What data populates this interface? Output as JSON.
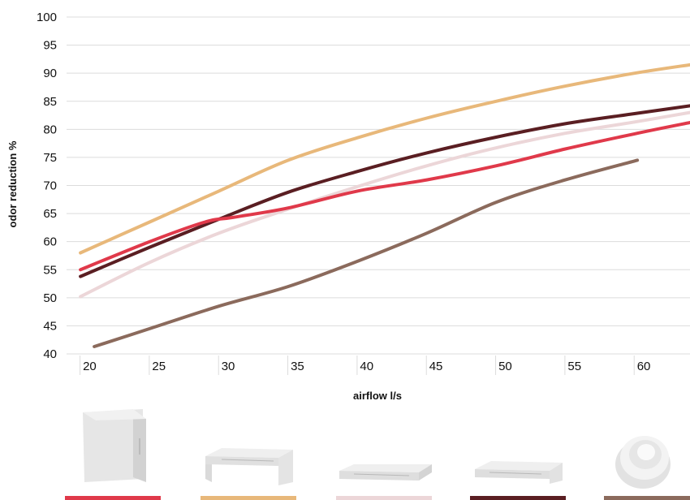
{
  "chart_data": {
    "type": "line",
    "xlabel": "airflow l/s",
    "ylabel": "odor reduction %",
    "xlim": [
      19,
      64
    ],
    "ylim": [
      40,
      100
    ],
    "x_ticks": [
      20,
      25,
      30,
      35,
      40,
      45,
      50,
      55,
      60
    ],
    "y_ticks": [
      40,
      45,
      50,
      55,
      60,
      65,
      70,
      75,
      80,
      85,
      90,
      95,
      100
    ],
    "grid": "horizontal",
    "series": [
      {
        "color": "#e8b87a",
        "points": [
          [
            20,
            58
          ],
          [
            25,
            63.5
          ],
          [
            30,
            69
          ],
          [
            35,
            74.5
          ],
          [
            40,
            78.5
          ],
          [
            45,
            82
          ],
          [
            50,
            85
          ],
          [
            55,
            87.7
          ],
          [
            60,
            90
          ],
          [
            64,
            91.5
          ]
        ]
      },
      {
        "color": "#5a1e22",
        "points": [
          [
            20,
            53.8
          ],
          [
            25,
            59
          ],
          [
            30,
            64
          ],
          [
            35,
            68.8
          ],
          [
            40,
            72.5
          ],
          [
            45,
            75.8
          ],
          [
            50,
            78.6
          ],
          [
            55,
            81
          ],
          [
            60,
            82.8
          ],
          [
            64,
            84.2
          ]
        ]
      },
      {
        "color": "#ecd6d8",
        "points": [
          [
            20,
            50.2
          ],
          [
            25,
            56.3
          ],
          [
            30,
            61.5
          ],
          [
            35,
            65.8
          ],
          [
            40,
            69.8
          ],
          [
            45,
            73.5
          ],
          [
            50,
            76.7
          ],
          [
            55,
            79.3
          ],
          [
            60,
            81.3
          ],
          [
            64,
            83
          ]
        ]
      },
      {
        "color": "#e0394a",
        "points": [
          [
            20,
            55
          ],
          [
            25,
            60
          ],
          [
            29,
            63.5
          ],
          [
            31,
            64.3
          ],
          [
            35,
            66
          ],
          [
            40,
            69
          ],
          [
            45,
            71
          ],
          [
            50,
            73.5
          ],
          [
            55,
            76.5
          ],
          [
            60,
            79.2
          ],
          [
            64,
            81.2
          ]
        ]
      },
      {
        "color": "#8b6a5c",
        "points": [
          [
            21,
            41.3
          ],
          [
            25,
            44.5
          ],
          [
            30,
            48.5
          ],
          [
            35,
            52
          ],
          [
            40,
            56.5
          ],
          [
            45,
            61.5
          ],
          [
            50,
            67
          ],
          [
            55,
            71
          ],
          [
            60.2,
            74.5
          ]
        ]
      }
    ]
  },
  "products": [
    {
      "icon": "wall-hood-icon",
      "color": "#e0394a"
    },
    {
      "icon": "canopy-hood-icon",
      "color": "#e8b87a"
    },
    {
      "icon": "slim-hood-icon",
      "color": "#ecd6d8"
    },
    {
      "icon": "flat-hood-icon",
      "color": "#5a1e22"
    },
    {
      "icon": "ceiling-disc-icon",
      "color": "#8b6a5c"
    }
  ]
}
